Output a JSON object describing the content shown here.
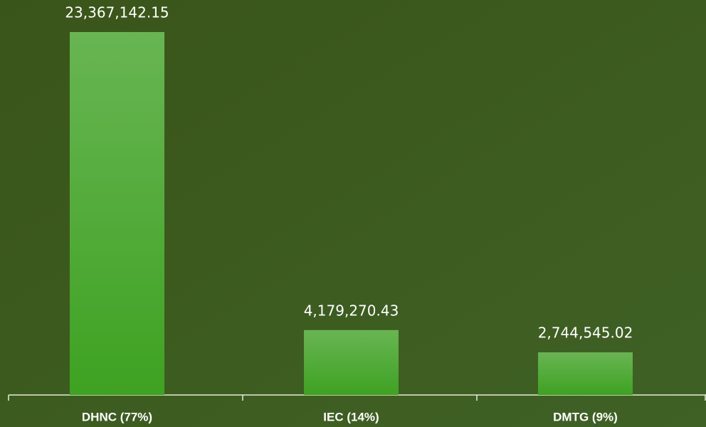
{
  "chart_data": {
    "type": "bar",
    "categories": [
      "DHNC (77%)",
      "IEC (14%)",
      "DMTG (9%)"
    ],
    "values": [
      23367142.15,
      4179270.43,
      2744545.02
    ],
    "value_labels": [
      "23,367,142.15",
      "4,179,270.43",
      "2,744,545.02"
    ],
    "color": "#52ad3a"
  }
}
